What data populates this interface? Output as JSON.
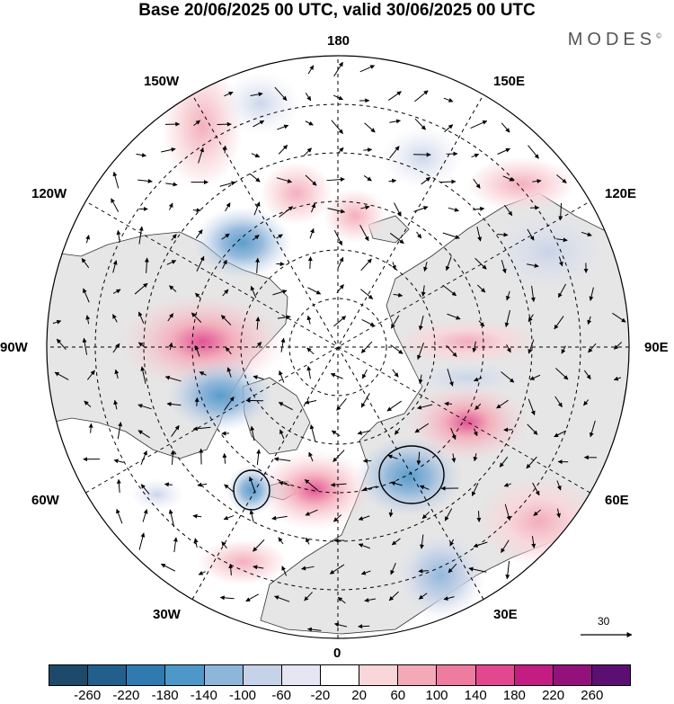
{
  "title": "Base 20/06/2025 00 UTC, valid 30/06/2025 00 UTC",
  "brand": {
    "name": "MODES",
    "mark": "©"
  },
  "longitude_labels": {
    "top": "180",
    "upper_left": "150W",
    "upper_right": "150E",
    "mid_upper_left": "120W",
    "mid_upper_right": "120E",
    "left": "90W",
    "right": "90E",
    "mid_lower_left": "60W",
    "mid_lower_right": "60E",
    "lower_left": "30W",
    "lower_right": "30E",
    "bottom": "0"
  },
  "reference_vector": {
    "label": "30"
  },
  "colorbar": {
    "colors": [
      "#1d4a6b",
      "#225f8d",
      "#2f7bb0",
      "#4e97c9",
      "#8eb5da",
      "#c6d2e8",
      "#e6e6f2",
      "#ffffff",
      "#f9d6da",
      "#f4a9b8",
      "#ee7ba0",
      "#e2488f",
      "#c41d81",
      "#92117a",
      "#5c0f72"
    ],
    "tick_labels": [
      "-260",
      "-220",
      "-180",
      "-140",
      "-100",
      "-60",
      "-20",
      "20",
      "60",
      "100",
      "140",
      "180",
      "220",
      "260"
    ]
  }
}
